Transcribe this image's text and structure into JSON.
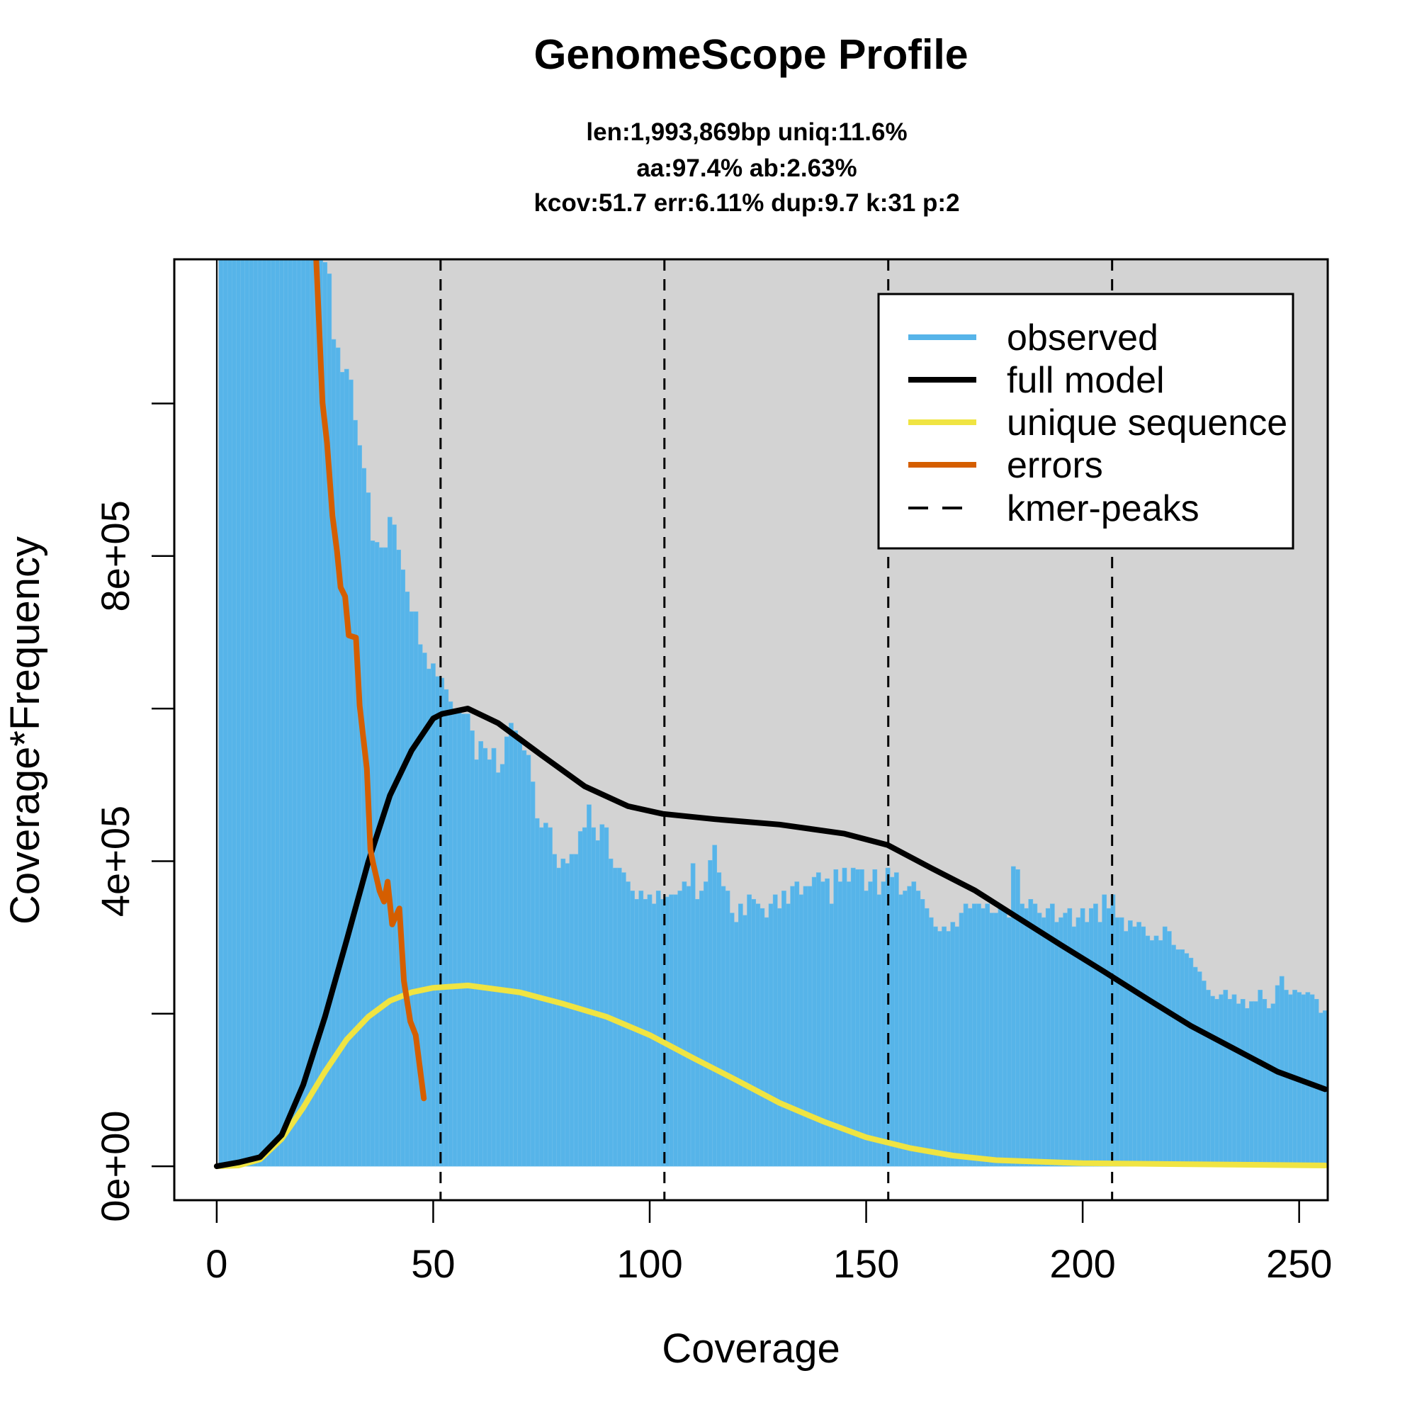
{
  "chart_data": {
    "type": "bar",
    "title": "GenomeScope Profile",
    "subtitle_lines": [
      "len:1,993,869bp uniq:11.6%",
      "aa:97.4% ab:2.63%",
      "kcov:51.7 err:6.11%  dup:9.7  k:31 p:2"
    ],
    "xlabel": "Coverage",
    "ylabel": "Coverage*Frequency",
    "xlim": [
      -9.8,
      256.6
    ],
    "ylim": [
      -44500,
      1189000
    ],
    "y_value_unit": 100000,
    "x_ticks": [
      0,
      50,
      100,
      150,
      200,
      250
    ],
    "x_tick_labels": [
      "0",
      "50",
      "100",
      "150",
      "200",
      "250"
    ],
    "y_ticks": [
      0,
      200000,
      400000,
      600000,
      800000,
      1000000
    ],
    "y_tick_labels": [
      "0e+00",
      "",
      "4e+05",
      "",
      "8e+05",
      ""
    ],
    "legend": {
      "position": "top-right",
      "entries": [
        {
          "label": "observed",
          "color": "#56B4E9",
          "style": "solid"
        },
        {
          "label": "full model",
          "color": "#000000",
          "style": "solid"
        },
        {
          "label": "unique sequence",
          "color": "#F0E442",
          "style": "solid"
        },
        {
          "label": "errors",
          "color": "#D55E00",
          "style": "solid"
        },
        {
          "label": "kmer-peaks",
          "color": "#000000",
          "style": "dashed"
        }
      ]
    },
    "colors": {
      "observed": "#56B4E9",
      "background": "#D3D3D3",
      "model": "#000000",
      "unique": "#F0E442",
      "errors": "#D55E00"
    },
    "kmer_peaks": [
      51.7,
      103.4,
      155.1,
      206.8
    ],
    "observed": {
      "x_start": 1,
      "values_e5": [
        14,
        14,
        14,
        14,
        14,
        14,
        14,
        14,
        14,
        14,
        14,
        14,
        14,
        14,
        14,
        14,
        14,
        14,
        14,
        14,
        14,
        14,
        14,
        14,
        11.85,
        11.7,
        10.84,
        10.73,
        10.41,
        10.45,
        10.31,
        9.78,
        9.45,
        9.15,
        8.83,
        8.2,
        8.18,
        8.11,
        8.11,
        8.51,
        8.41,
        8.08,
        7.82,
        7.53,
        7.27,
        7.27,
        6.84,
        6.73,
        6.52,
        6.59,
        6.42,
        6.4,
        6.25,
        6.09,
        5.99,
        5.96,
        5.93,
        5.93,
        5.71,
        5.33,
        5.57,
        5.48,
        5.33,
        5.48,
        5.16,
        5.27,
        5.63,
        5.81,
        5.71,
        5.57,
        5.45,
        5.39,
        5.04,
        4.56,
        4.44,
        4.5,
        4.44,
        4.09,
        3.91,
        4.03,
        3.97,
        4.09,
        4.09,
        4.39,
        4.44,
        4.74,
        4.44,
        4.27,
        4.48,
        4.44,
        4.03,
        3.91,
        3.91,
        3.85,
        3.73,
        3.61,
        3.5,
        3.61,
        3.5,
        3.56,
        3.44,
        3.61,
        3.5,
        3.53,
        3.56,
        3.56,
        3.61,
        3.73,
        3.67,
        3.97,
        3.5,
        3.61,
        3.73,
        4.01,
        4.21,
        3.85,
        3.67,
        3.61,
        3.32,
        3.2,
        3.44,
        3.29,
        3.56,
        3.5,
        3.44,
        3.38,
        3.26,
        3.44,
        3.56,
        3.38,
        3.61,
        3.44,
        3.67,
        3.73,
        3.56,
        3.67,
        3.67,
        3.79,
        3.85,
        3.73,
        3.77,
        3.44,
        3.89,
        3.73,
        3.91,
        3.73,
        3.91,
        3.89,
        3.89,
        3.61,
        3.73,
        3.89,
        3.56,
        3.73,
        3.91,
        3.79,
        3.85,
        3.56,
        3.61,
        3.67,
        3.73,
        3.61,
        3.5,
        3.38,
        3.26,
        3.14,
        3.08,
        3.14,
        3.08,
        3.2,
        3.14,
        3.32,
        3.44,
        3.38,
        3.44,
        3.44,
        3.38,
        3.44,
        3.32,
        3.32,
        3.38,
        3.38,
        3.26,
        3.93,
        3.89,
        3.44,
        3.38,
        3.5,
        3.44,
        3.32,
        3.26,
        3.38,
        3.44,
        3.2,
        3.26,
        3.32,
        3.38,
        3.14,
        3.26,
        3.38,
        3.2,
        3.38,
        3.44,
        3.2,
        3.56,
        3.38,
        3.56,
        3.26,
        3.26,
        3.08,
        3.22,
        3.14,
        3.2,
        3.14,
        3.02,
        2.96,
        3.02,
        2.96,
        3.14,
        3.08,
        2.9,
        2.84,
        2.84,
        2.79,
        2.73,
        2.61,
        2.55,
        2.43,
        2.31,
        2.23,
        2.19,
        2.25,
        2.31,
        2.19,
        2.25,
        2.13,
        2.19,
        2.07,
        2.16,
        2.16,
        2.31,
        2.19,
        2.07,
        2.13,
        2.37,
        2.49,
        2.31,
        2.25,
        2.31,
        2.28,
        2.25,
        2.28,
        2.25,
        2.19,
        2.01,
        2.04
      ]
    },
    "full_model": {
      "x": [
        0,
        5,
        10,
        15,
        20,
        25,
        30,
        35,
        40,
        45,
        50,
        52,
        58,
        65,
        75,
        85,
        95,
        103,
        115,
        130,
        145,
        155,
        165,
        175,
        185,
        195,
        205,
        215,
        225,
        235,
        245,
        256
      ],
      "y_e5": [
        0,
        0.05,
        0.12,
        0.41,
        1.07,
        1.96,
        2.96,
        3.99,
        4.86,
        5.45,
        5.87,
        5.93,
        6.0,
        5.81,
        5.39,
        4.98,
        4.72,
        4.62,
        4.55,
        4.48,
        4.36,
        4.21,
        3.91,
        3.62,
        3.26,
        2.9,
        2.55,
        2.19,
        1.84,
        1.54,
        1.24,
        1.01
      ]
    },
    "unique_sequence": {
      "x": [
        0,
        5,
        10,
        15,
        20,
        25,
        30,
        35,
        40,
        45,
        50,
        58,
        70,
        80,
        90,
        100,
        110,
        120,
        130,
        140,
        150,
        160,
        170,
        180,
        200,
        256
      ],
      "y_e5": [
        0,
        0.01,
        0.09,
        0.36,
        0.77,
        1.24,
        1.66,
        1.96,
        2.17,
        2.28,
        2.34,
        2.37,
        2.28,
        2.13,
        1.96,
        1.72,
        1.42,
        1.13,
        0.83,
        0.59,
        0.38,
        0.24,
        0.14,
        0.08,
        0.04,
        0.01
      ]
    },
    "errors": {
      "x": [
        22.97,
        24.44,
        25.48,
        26.73,
        27.78,
        28.61,
        29.66,
        30.49,
        32.16,
        33.0,
        34.67,
        35.5,
        36.13,
        37.6,
        38.64,
        39.47,
        40.52,
        42.19,
        43.23,
        44.7,
        45.95,
        47.83
      ],
      "y_e5": [
        11.89,
        10.01,
        9.48,
        8.53,
        8.06,
        7.59,
        7.47,
        6.96,
        6.93,
        6.04,
        5.21,
        4.15,
        3.97,
        3.61,
        3.47,
        3.73,
        3.17,
        3.38,
        2.43,
        1.9,
        1.72,
        0.89
      ]
    }
  }
}
